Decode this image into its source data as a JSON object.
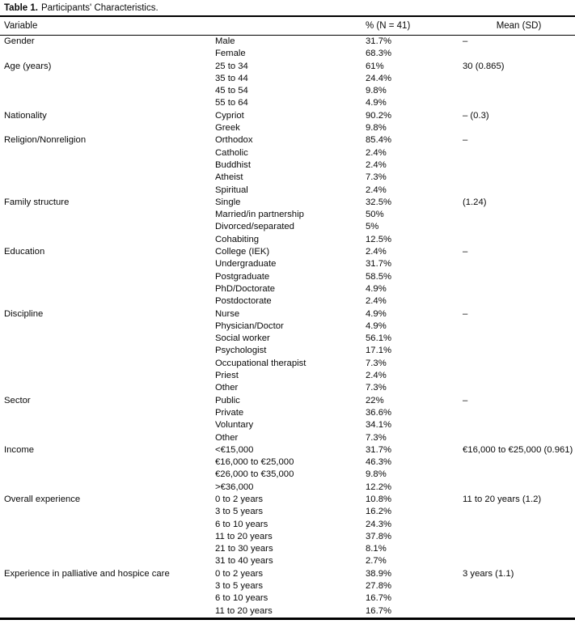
{
  "table": {
    "label": "Table 1.",
    "caption": "Participants' Characteristics.",
    "columns": {
      "variable": "Variable",
      "percent": "% (N = 41)",
      "mean": "Mean (SD)"
    },
    "rows": [
      {
        "variable": "Gender",
        "category": "Male",
        "percent": "31.7%",
        "mean": "–"
      },
      {
        "variable": "",
        "category": "Female",
        "percent": "68.3%",
        "mean": ""
      },
      {
        "variable": "Age (years)",
        "category": "25 to 34",
        "percent": "61%",
        "mean": "30 (0.865)"
      },
      {
        "variable": "",
        "category": "35 to 44",
        "percent": "24.4%",
        "mean": ""
      },
      {
        "variable": "",
        "category": "45 to 54",
        "percent": "9.8%",
        "mean": ""
      },
      {
        "variable": "",
        "category": "55 to 64",
        "percent": "4.9%",
        "mean": ""
      },
      {
        "variable": "Nationality",
        "category": "Cypriot",
        "percent": "90.2%",
        "mean": "– (0.3)"
      },
      {
        "variable": "",
        "category": "Greek",
        "percent": "9.8%",
        "mean": ""
      },
      {
        "variable": "Religion/Nonreligion",
        "category": "Orthodox",
        "percent": "85.4%",
        "mean": "–"
      },
      {
        "variable": "",
        "category": "Catholic",
        "percent": "2.4%",
        "mean": ""
      },
      {
        "variable": "",
        "category": "Buddhist",
        "percent": "2.4%",
        "mean": ""
      },
      {
        "variable": "",
        "category": "Atheist",
        "percent": "7.3%",
        "mean": ""
      },
      {
        "variable": "",
        "category": "Spiritual",
        "percent": "2.4%",
        "mean": ""
      },
      {
        "variable": "Family structure",
        "category": "Single",
        "percent": "32.5%",
        "mean": "(1.24)"
      },
      {
        "variable": "",
        "category": "Married/in partnership",
        "percent": "50%",
        "mean": ""
      },
      {
        "variable": "",
        "category": "Divorced/separated",
        "percent": "5%",
        "mean": ""
      },
      {
        "variable": "",
        "category": "Cohabiting",
        "percent": "12.5%",
        "mean": ""
      },
      {
        "variable": "Education",
        "category": "College (IEK)",
        "percent": "2.4%",
        "mean": "–"
      },
      {
        "variable": "",
        "category": "Undergraduate",
        "percent": "31.7%",
        "mean": ""
      },
      {
        "variable": "",
        "category": "Postgraduate",
        "percent": "58.5%",
        "mean": ""
      },
      {
        "variable": "",
        "category": "PhD/Doctorate",
        "percent": "4.9%",
        "mean": ""
      },
      {
        "variable": "",
        "category": "Postdoctorate",
        "percent": "2.4%",
        "mean": ""
      },
      {
        "variable": "Discipline",
        "category": "Nurse",
        "percent": "4.9%",
        "mean": "–"
      },
      {
        "variable": "",
        "category": "Physician/Doctor",
        "percent": "4.9%",
        "mean": ""
      },
      {
        "variable": "",
        "category": "Social worker",
        "percent": "56.1%",
        "mean": ""
      },
      {
        "variable": "",
        "category": "Psychologist",
        "percent": "17.1%",
        "mean": ""
      },
      {
        "variable": "",
        "category": "Occupational therapist",
        "percent": "7.3%",
        "mean": ""
      },
      {
        "variable": "",
        "category": "Priest",
        "percent": "2.4%",
        "mean": ""
      },
      {
        "variable": "",
        "category": "Other",
        "percent": "7.3%",
        "mean": ""
      },
      {
        "variable": "Sector",
        "category": "Public",
        "percent": "22%",
        "mean": "–"
      },
      {
        "variable": "",
        "category": "Private",
        "percent": "36.6%",
        "mean": ""
      },
      {
        "variable": "",
        "category": "Voluntary",
        "percent": "34.1%",
        "mean": ""
      },
      {
        "variable": "",
        "category": "Other",
        "percent": "7.3%",
        "mean": ""
      },
      {
        "variable": "Income",
        "category": "<€15,000",
        "percent": "31.7%",
        "mean": "€16,000 to €25,000 (0.961)"
      },
      {
        "variable": "",
        "category": "€16,000 to €25,000",
        "percent": "46.3%",
        "mean": ""
      },
      {
        "variable": "",
        "category": "€26,000 to €35,000",
        "percent": "9.8%",
        "mean": ""
      },
      {
        "variable": "",
        "category": ">€36,000",
        "percent": "12.2%",
        "mean": ""
      },
      {
        "variable": "Overall experience",
        "category": "0 to 2 years",
        "percent": "10.8%",
        "mean": "11 to 20 years (1.2)"
      },
      {
        "variable": "",
        "category": "3 to 5 years",
        "percent": "16.2%",
        "mean": ""
      },
      {
        "variable": "",
        "category": "6 to 10 years",
        "percent": "24.3%",
        "mean": ""
      },
      {
        "variable": "",
        "category": "11 to 20 years",
        "percent": "37.8%",
        "mean": ""
      },
      {
        "variable": "",
        "category": "21 to 30 years",
        "percent": "8.1%",
        "mean": ""
      },
      {
        "variable": "",
        "category": "31 to 40 years",
        "percent": "2.7%",
        "mean": ""
      },
      {
        "variable": "Experience in palliative and hospice care",
        "category": "0 to 2 years",
        "percent": "38.9%",
        "mean": "3 years (1.1)"
      },
      {
        "variable": "",
        "category": "3 to 5 years",
        "percent": "27.8%",
        "mean": ""
      },
      {
        "variable": "",
        "category": "6 to 10 years",
        "percent": "16.7%",
        "mean": ""
      },
      {
        "variable": "",
        "category": "11 to 20 years",
        "percent": "16.7%",
        "mean": ""
      }
    ]
  }
}
